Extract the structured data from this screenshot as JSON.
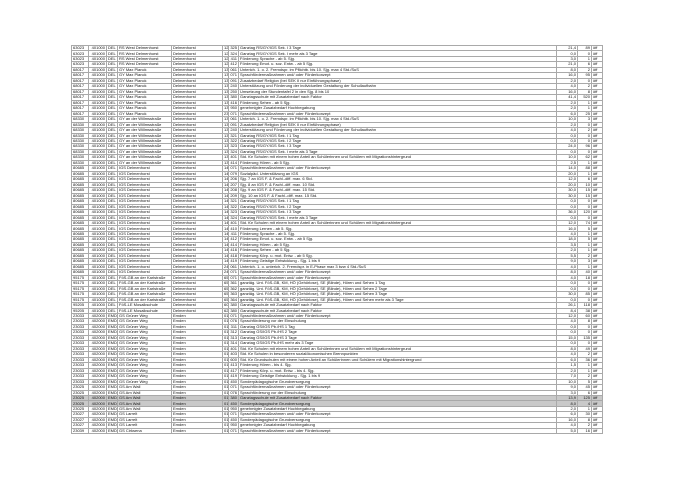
{
  "page": {
    "background": "#ffffff"
  },
  "table": {
    "border_color": "#a9a9a9",
    "outer_border_color": "#848484",
    "highlight_color": "#c9c9c9",
    "columns": [
      "Schulnummer",
      "Trägercode",
      "Kürzel",
      "Schulname",
      "Ort",
      "Schulform",
      "Grund",
      "Beschreibung",
      "Stunden",
      "Anzahl",
      "Status"
    ],
    "highlighted_rows": [
      64,
      65
    ],
    "rows": [
      [
        "63023",
        "401000",
        "DEL",
        "RS West Delmenhorst",
        "Delmenhorst",
        "12",
        "325",
        "Ganztag RS/GY/IGS Sek. I 3 Tage",
        "21,4",
        "89",
        "öff"
      ],
      [
        "63023",
        "401000",
        "DEL",
        "RS West Delmenhorst",
        "Delmenhorst",
        "12",
        "324",
        "Ganztag RS/GY/IGS Sek. I mehr als 3 Tage",
        "0,0",
        "0",
        "öff"
      ],
      [
        "63023",
        "401000",
        "DEL",
        "RS West Delmenhorst",
        "Delmenhorst",
        "12",
        "411",
        "Förderung Sprache - ab 5. Sjg.",
        "3,0",
        "1",
        "öff"
      ],
      [
        "63023",
        "401000",
        "DEL",
        "RS West Delmenhorst",
        "Delmenhorst",
        "12",
        "412",
        "Förderung Emot. u. soz. Entw. - ab 5 Sjg.",
        "21,0",
        "6",
        "öff"
      ],
      [
        "68017",
        "401000",
        "DEL",
        "GY Max Planck",
        "Delmenhorst",
        "13",
        "061",
        "Unterich. 1. o. 2. Fremdspr. im Pflichtb. bis 10. Sjg. max 4 Std./SuS",
        "8,0",
        "2",
        "öff"
      ],
      [
        "68017",
        "401000",
        "DEL",
        "GY Max Planck",
        "Delmenhorst",
        "13",
        "071",
        "Sprachfördermaßnahmen und/ oder Förderkonzept",
        "16,0",
        "95",
        "öff"
      ],
      [
        "68017",
        "401000",
        "DEL",
        "GY Max Planck",
        "Delmenhorst",
        "13",
        "091",
        "Zusatzbedarf Religion (bei SEK II nur Einführungsphase)",
        "2,0",
        "0",
        "öff"
      ],
      [
        "68017",
        "401000",
        "DEL",
        "GY Max Planck",
        "Delmenhorst",
        "13",
        "240",
        "Unterstützung und Förderung der individuellen Gestaltung der Schullaufbahn",
        "4,0",
        "2",
        "öff"
      ],
      [
        "68017",
        "401000",
        "DEL",
        "GY Max Planck",
        "Delmenhorst",
        "13",
        "250",
        "Umsetzung der Stundentafel 2 in den Sjg. 8 bis 10",
        "16,0",
        "8",
        "öff"
      ],
      [
        "68017",
        "401000",
        "DEL",
        "GY Max Planck",
        "Delmenhorst",
        "13",
        "380",
        "Ganztagsschule mit Zusatzbedarf nach Faktor",
        "41,4",
        "520",
        "öff"
      ],
      [
        "68017",
        "401000",
        "DEL",
        "GY Max Planck",
        "Delmenhorst",
        "13",
        "416",
        "Förderung Sehen - ab 5 Sjg.",
        "2,0",
        "1",
        "öff"
      ],
      [
        "68017",
        "401000",
        "DEL",
        "GY Max Planck",
        "Delmenhorst",
        "13",
        "950",
        "genehmigter Zusatzbedarf Hochbegabung",
        "2,0",
        "1",
        "öff"
      ],
      [
        "68017",
        "401000",
        "DEL",
        "GY Max Planck",
        "Delmenhorst",
        "23",
        "071",
        "Sprachfördermaßnahmen und/ oder Förderkonzept",
        "6,0",
        "25",
        "öff"
      ],
      [
        "68330",
        "401000",
        "DEL",
        "GY an der Willmsstraße",
        "Delmenhorst",
        "13",
        "061",
        "Unterich. 1. o. 2. Fremdspr. im Pflichtb. bis 10. Sjg. max 4 Std./SuS",
        "10,0",
        "3",
        "öff"
      ],
      [
        "68330",
        "401000",
        "DEL",
        "GY an der Willmsstraße",
        "Delmenhorst",
        "13",
        "091",
        "Zusatzbedarf Religion (bei SEK II nur Einführungsphase)",
        "2,0",
        "0",
        "öff"
      ],
      [
        "68330",
        "401000",
        "DEL",
        "GY an der Willmsstraße",
        "Delmenhorst",
        "13",
        "240",
        "Unterstützung und Förderung der individuellen Gestaltung der Schullaufbahn",
        "4,0",
        "2",
        "öff"
      ],
      [
        "68330",
        "401000",
        "DEL",
        "GY an der Willmsstraße",
        "Delmenhorst",
        "13",
        "321",
        "Ganztag RS/GY/IGS Sek. I 1 Tag",
        "0,0",
        "0",
        "öff"
      ],
      [
        "68330",
        "401000",
        "DEL",
        "GY an der Willmsstraße",
        "Delmenhorst",
        "13",
        "322",
        "Ganztag RS/GY/IGS Sek. I 2 Tage",
        "0,0",
        "0",
        "öff"
      ],
      [
        "68330",
        "401000",
        "DEL",
        "GY an der Willmsstraße",
        "Delmenhorst",
        "13",
        "323",
        "Ganztag RS/GY/IGS Sek. I 3 Tage",
        "24,0",
        "96",
        "öff"
      ],
      [
        "68330",
        "401000",
        "DEL",
        "GY an der Willmsstraße",
        "Delmenhorst",
        "13",
        "324",
        "Ganztag RS/GY/IGS Sek. I mehr als 3 Tage",
        "0,0",
        "0",
        "öff"
      ],
      [
        "68330",
        "401000",
        "DEL",
        "GY an der Willmsstraße",
        "Delmenhorst",
        "13",
        "401",
        "Std. für Schulen mit einem hohen Anteil an Schülerinnen und Schülern mit Migrationshintergrund",
        "10,0",
        "62",
        "öff"
      ],
      [
        "68330",
        "401000",
        "DEL",
        "GY an der Willmsstraße",
        "Delmenhorst",
        "13",
        "414",
        "Förderung Hören - ab 5 Sjg.",
        "2,5",
        "1",
        "öff"
      ],
      [
        "80685",
        "401000",
        "DEL",
        "IGS Delmenhorst",
        "Delmenhorst",
        "14",
        "071",
        "Sprachfördermaßnahmen und/ oder Förderkonzept",
        "14,0",
        "88",
        "öff"
      ],
      [
        "80685",
        "401000",
        "DEL",
        "IGS Delmenhorst",
        "Delmenhorst",
        "14",
        "079",
        "Sozialpäd. Unterstützung an IGS",
        "20,0",
        "1",
        "öff"
      ],
      [
        "80685",
        "401000",
        "DEL",
        "IGS Delmenhorst",
        "Delmenhorst",
        "14",
        "206",
        "Sjg. 7 an IGS F. & Fachl.-diff. max. 6 Std.",
        "12,0",
        "6",
        "öff"
      ],
      [
        "80685",
        "401000",
        "DEL",
        "IGS Delmenhorst",
        "Delmenhorst",
        "14",
        "207",
        "Sjg. 8 an IGS F. & Fachl.-diff. max. 10 Std.",
        "20,0",
        "10",
        "öff"
      ],
      [
        "80685",
        "401000",
        "DEL",
        "IGS Delmenhorst",
        "Delmenhorst",
        "14",
        "208",
        "Sjg. 9 an IGS F. & Fachl.-diff. max. 15 Std.",
        "30,0",
        "15",
        "öff"
      ],
      [
        "80685",
        "401000",
        "DEL",
        "IGS Delmenhorst",
        "Delmenhorst",
        "14",
        "209",
        "Sjg. 10 an IGS F. & Fachl.-diff. max. 15 Std.",
        "30,0",
        "15",
        "öff"
      ],
      [
        "80685",
        "401000",
        "DEL",
        "IGS Delmenhorst",
        "Delmenhorst",
        "14",
        "321",
        "Ganztag RS/GY/IGS Sek. I 1 Tag",
        "0,0",
        "0",
        "öff"
      ],
      [
        "80685",
        "401000",
        "DEL",
        "IGS Delmenhorst",
        "Delmenhorst",
        "14",
        "322",
        "Ganztag RS/GY/IGS Sek. I 2 Tage",
        "0,0",
        "0",
        "öff"
      ],
      [
        "80685",
        "401000",
        "DEL",
        "IGS Delmenhorst",
        "Delmenhorst",
        "14",
        "323",
        "Ganztag RS/GY/IGS Sek. I 3 Tage",
        "36,0",
        "120",
        "öff"
      ],
      [
        "80685",
        "401000",
        "DEL",
        "IGS Delmenhorst",
        "Delmenhorst",
        "14",
        "324",
        "Ganztag RS/GY/IGS Sek. I mehr als 3 Tage",
        "0,0",
        "0",
        "öff"
      ],
      [
        "80685",
        "401000",
        "DEL",
        "IGS Delmenhorst",
        "Delmenhorst",
        "14",
        "401",
        "Std. für Schulen mit einem hohen Anteil an Schülerinnen und Schülern mit Migrationshintergrund",
        "12,0",
        "74",
        "öff"
      ],
      [
        "80685",
        "401000",
        "DEL",
        "IGS Delmenhorst",
        "Delmenhorst",
        "14",
        "410",
        "Förderung Lernen - ab 5. Sjg.",
        "16,0",
        "5",
        "öff"
      ],
      [
        "80685",
        "401000",
        "DEL",
        "IGS Delmenhorst",
        "Delmenhorst",
        "14",
        "411",
        "Förderung Sprache - ab 5. Sjg.",
        "4,0",
        "1",
        "öff"
      ],
      [
        "80685",
        "401000",
        "DEL",
        "IGS Delmenhorst",
        "Delmenhorst",
        "14",
        "412",
        "Förderung Emot. u. soz. Entw. - ab 5 Sjg.",
        "18,0",
        "5",
        "öff"
      ],
      [
        "80685",
        "401000",
        "DEL",
        "IGS Delmenhorst",
        "Delmenhorst",
        "14",
        "414",
        "Förderung Hören - ab 5 Sjg.",
        "3,5",
        "1",
        "öff"
      ],
      [
        "80685",
        "401000",
        "DEL",
        "IGS Delmenhorst",
        "Delmenhorst",
        "14",
        "416",
        "Förderung Sehen - ab 5 Sjg.",
        "2,0",
        "1",
        "öff"
      ],
      [
        "80685",
        "401000",
        "DEL",
        "IGS Delmenhorst",
        "Delmenhorst",
        "14",
        "418",
        "Förderung Körp. u. mot. Entw. - ab 5 Sjg.",
        "5,5",
        "2",
        "öff"
      ],
      [
        "80685",
        "401000",
        "DEL",
        "IGS Delmenhorst",
        "Delmenhorst",
        "14",
        "419",
        "Förderung Geistige Entwicklung - Sjg. 1 bis 9",
        "9,0",
        "3",
        "öff"
      ],
      [
        "80685",
        "401000",
        "DEL",
        "IGS Delmenhorst",
        "Delmenhorst",
        "24",
        "061",
        "Unterich. 1. o. unterich. 2. Fremdspr. in E-Phase max 3 bzw 4 Std./SuS",
        "4,0",
        "1",
        "öff"
      ],
      [
        "80685",
        "401000",
        "DEL",
        "IGS Delmenhorst",
        "Delmenhorst",
        "24",
        "071",
        "Sprachfördermaßnahmen und/ oder Förderkonzept",
        "8,0",
        "40",
        "öff"
      ],
      [
        "95175",
        "401000",
        "DEL",
        "FöS-GB an der Karlstraße",
        "Delmenhorst",
        "65",
        "071",
        "Sprachfördermaßnahmen und/ oder Förderkonzept",
        "4,0",
        "18",
        "öff"
      ],
      [
        "95175",
        "401000",
        "DEL",
        "FöS-GB an der Karlstraße",
        "Delmenhorst",
        "65",
        "361",
        "ganztäg. Unt. FöS-GB, KM, HÖ (Gehörlose), SE (Blinde), Hören und Sehen 1 Tag",
        "0,0",
        "0",
        "öff"
      ],
      [
        "95175",
        "401000",
        "DEL",
        "FöS-GB an der Karlstraße",
        "Delmenhorst",
        "65",
        "362",
        "ganztäg. Unt. FöS-GB, KM, HÖ (Gehörlose), SE (Blinde), Hören und Sehen 2 Tage",
        "0,0",
        "0",
        "öff"
      ],
      [
        "95175",
        "401000",
        "DEL",
        "FöS-GB an der Karlstraße",
        "Delmenhorst",
        "65",
        "363",
        "ganztäg. Unt. FöS-GB, KM, HÖ (Gehörlose), SE (Blinde), Hören und Sehen 3 Tage",
        "30,0",
        "85",
        "öff"
      ],
      [
        "95175",
        "401000",
        "DEL",
        "FöS-GB an der Karlstraße",
        "Delmenhorst",
        "65",
        "364",
        "ganztäg. Unt. FöS-GB, KM, HÖ (Gehörlose), SE (Blinde), Hören und Sehen mehr als 3 Tage",
        "0,0",
        "0",
        "öff"
      ],
      [
        "95205",
        "401000",
        "DEL",
        "FöS-LE Mosaikschule",
        "Delmenhorst",
        "60",
        "380",
        "Ganztagsschule mit Zusatzbedarf nach Faktor",
        "26,1",
        "118",
        "öff"
      ],
      [
        "95205",
        "401000",
        "DEL",
        "FöS-LE Mosaikschule",
        "Delmenhorst",
        "62",
        "380",
        "Ganztagsschule mit Zusatzbedarf nach Faktor",
        "8,4",
        "38",
        "öff"
      ],
      [
        "23033",
        "402000",
        "EMD",
        "GS Grüner Weg",
        "Emden",
        "01",
        "071",
        "Sprachfördermaßnahmen und/ oder Förderkonzept",
        "12,0",
        "60",
        "öff"
      ],
      [
        "23033",
        "402000",
        "EMD",
        "GS Grüner Weg",
        "Emden",
        "01",
        "076",
        "Sprachförderung vor der Einschulung",
        "4,0",
        "8",
        "öff"
      ],
      [
        "23033",
        "402000",
        "EMD",
        "GS Grüner Weg",
        "Emden",
        "01",
        "311",
        "Ganztag GS/IGS Pb./HS 1 Tag",
        "0,0",
        "0",
        "öff"
      ],
      [
        "23033",
        "402000",
        "EMD",
        "GS Grüner Weg",
        "Emden",
        "01",
        "312",
        "Ganztag GS/IGS Pb./HS 2 Tage",
        "0,0",
        "0",
        "öff"
      ],
      [
        "23033",
        "402000",
        "EMD",
        "GS Grüner Weg",
        "Emden",
        "01",
        "313",
        "Ganztag GS/IGS Pb./HS 3 Tage",
        "15,0",
        "135",
        "öff"
      ],
      [
        "23033",
        "402000",
        "EMD",
        "GS Grüner Weg",
        "Emden",
        "01",
        "314",
        "Ganztag GS/IGS Pb./HS mehr als 3 Tage",
        "0,0",
        "0",
        "öff"
      ],
      [
        "23033",
        "402000",
        "EMD",
        "GS Grüner Weg",
        "Emden",
        "01",
        "401",
        "Std. für Schulen mit einem hohen Anteil an Schülerinnen und Schülern mit Migrationshintergrund",
        "8,0",
        "49",
        "öff"
      ],
      [
        "23033",
        "402000",
        "EMD",
        "GS Grüner Weg",
        "Emden",
        "01",
        "403",
        "Std. für Schulen in besonderen sozialökonomischen Brennpunkten",
        "4,0",
        "2",
        "öff"
      ],
      [
        "23033",
        "402000",
        "EMD",
        "GS Grüner Weg",
        "Emden",
        "01",
        "600",
        "Std. für Grundschulen mit einem hohen Anteil an Schülerinnen und Schülern mit Migrationshintergrund",
        "6,0",
        "36",
        "öff"
      ],
      [
        "23033",
        "402000",
        "EMD",
        "GS Grüner Weg",
        "Emden",
        "01",
        "413",
        "Förderung Hören - bis 4. Sjg.",
        "1,5",
        "1",
        "öff"
      ],
      [
        "23033",
        "402000",
        "EMD",
        "GS Grüner Weg",
        "Emden",
        "01",
        "417",
        "Förderung Körp. u. mot. Entw. - bis 4. Sjg.",
        "2,0",
        "1",
        "öff"
      ],
      [
        "23033",
        "402000",
        "EMD",
        "GS Grüner Weg",
        "Emden",
        "01",
        "419",
        "Förderung Geistige Entwicklung - Sjg. 1 bis 9",
        "7,0",
        "2",
        "öff"
      ],
      [
        "23033",
        "402000",
        "EMD",
        "GS Grüner Weg",
        "Emden",
        "01",
        "450",
        "Sonderpädagogische Grundversorgung",
        "10,0",
        "5",
        "öff"
      ],
      [
        "23025",
        "402000",
        "EMD",
        "GS Am Wall",
        "Emden",
        "01",
        "071",
        "Sprachfördermaßnahmen und/ oder Förderkonzept",
        "9,0",
        "45",
        "öff"
      ],
      [
        "23025",
        "402000",
        "EMD",
        "GS Am Wall",
        "Emden",
        "01",
        "076",
        "Sprachförderung vor der Einschulung",
        "3,0",
        "6",
        "öff"
      ],
      [
        "23025",
        "402000",
        "EMD",
        "GS Am Wall",
        "Emden",
        "01",
        "380",
        "Ganztagsschule mit Zusatzbedarf nach Faktor",
        "13,9",
        "125",
        "öff"
      ],
      [
        "23025",
        "402000",
        "EMD",
        "GS Am Wall",
        "Emden",
        "01",
        "450",
        "Sonderpädagogische Grundversorgung",
        "8,0",
        "4",
        "öff"
      ],
      [
        "23025",
        "402000",
        "EMD",
        "GS Am Wall",
        "Emden",
        "01",
        "950",
        "genehmigter Zusatzbedarf Hochbegabung",
        "2,0",
        "1",
        "öff"
      ],
      [
        "23027",
        "402000",
        "EMD",
        "GS Larrelt",
        "Emden",
        "01",
        "071",
        "Sprachfördermaßnahmen und/ oder Förderkonzept",
        "6,0",
        "30",
        "öff"
      ],
      [
        "23027",
        "402000",
        "EMD",
        "GS Larrelt",
        "Emden",
        "01",
        "450",
        "Sonderpädagogische Grundversorgung",
        "16,0",
        "8",
        "öff"
      ],
      [
        "23027",
        "402000",
        "EMD",
        "GS Larrelt",
        "Emden",
        "01",
        "950",
        "genehmigter Zusatzbedarf Hochbegabung",
        "4,0",
        "2",
        "öff"
      ],
      [
        "23039",
        "402000",
        "EMD",
        "GS Cirksena",
        "Emden",
        "01",
        "071",
        "Sprachfördermaßnahmen und/ oder Förderkonzept",
        "5,0",
        "16",
        "öff"
      ]
    ]
  }
}
